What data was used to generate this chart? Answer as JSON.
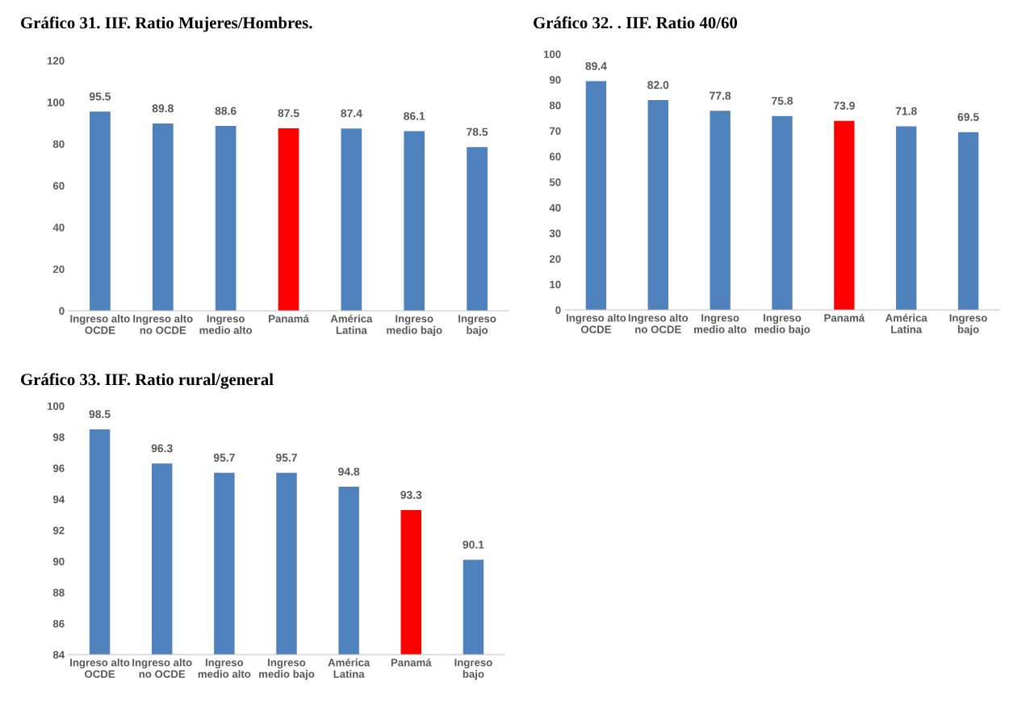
{
  "chart_data": [
    {
      "type": "bar",
      "title": "Gráfico 31. IIF. Ratio Mujeres/Hombres.",
      "categories": [
        "Ingreso alto\nOCDE",
        "Ingreso alto\nno OCDE",
        "Ingreso\nmedio alto",
        "Panamá",
        "América\nLatina",
        "Ingreso\nmedio bajo",
        "Ingreso\nbajo"
      ],
      "values": [
        95.5,
        89.8,
        88.6,
        87.5,
        87.4,
        86.1,
        78.5
      ],
      "colors": [
        "#4f81bd",
        "#4f81bd",
        "#4f81bd",
        "#ff0000",
        "#4f81bd",
        "#4f81bd",
        "#4f81bd"
      ],
      "ylim": [
        0,
        120
      ],
      "yticks": [
        0,
        20,
        40,
        60,
        80,
        100,
        120
      ],
      "data_labels": true,
      "grid": false
    },
    {
      "type": "bar",
      "title": "Gráfico 32. . IIF. Ratio 40/60",
      "categories": [
        "Ingreso alto\nOCDE",
        "Ingreso alto\nno OCDE",
        "Ingreso\nmedio alto",
        "Ingreso\nmedio bajo",
        "Panamá",
        "América\nLatina",
        "Ingreso\nbajo"
      ],
      "values": [
        89.4,
        82.0,
        77.8,
        75.8,
        73.9,
        71.8,
        69.5
      ],
      "value_labels": [
        "89.4",
        "82.0",
        "77.8",
        "75.8",
        "73.9",
        "71.8",
        "69.5"
      ],
      "colors": [
        "#4f81bd",
        "#4f81bd",
        "#4f81bd",
        "#4f81bd",
        "#ff0000",
        "#4f81bd",
        "#4f81bd"
      ],
      "ylim": [
        0,
        100
      ],
      "yticks": [
        0,
        10,
        20,
        30,
        40,
        50,
        60,
        70,
        80,
        90,
        100
      ],
      "grid": false
    },
    {
      "type": "bar",
      "title": "Gráfico 33. IIF. Ratio rural/general",
      "categories": [
        "Ingreso alto\nOCDE",
        "Ingreso alto\nno OCDE",
        "Ingreso\nmedio alto",
        "Ingreso\nmedio bajo",
        "América\nLatina",
        "Panamá",
        "Ingreso\nbajo"
      ],
      "values": [
        98.5,
        96.3,
        95.7,
        95.7,
        94.8,
        93.3,
        90.1
      ],
      "colors": [
        "#4f81bd",
        "#4f81bd",
        "#4f81bd",
        "#4f81bd",
        "#4f81bd",
        "#ff0000",
        "#4f81bd"
      ],
      "ylim": [
        84,
        100
      ],
      "yticks": [
        84,
        86,
        88,
        90,
        92,
        94,
        96,
        98,
        100
      ],
      "data_labels": true,
      "grid": false
    }
  ]
}
